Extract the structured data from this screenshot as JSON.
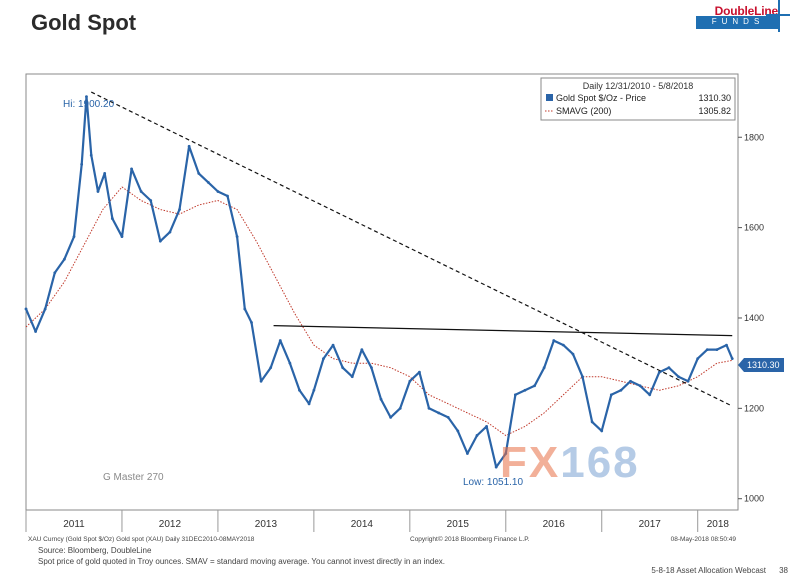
{
  "slide": {
    "title": "Gold Spot",
    "logo_brand": "DoubleLine",
    "logo_sub": "FUNDS",
    "source": "Source: Bloomberg, DoubleLine",
    "note": "Spot price of gold quoted in Troy ounces. SMAV = standard moving average. You cannot invest directly in an index.",
    "footer": "5-8-18 Asset Allocation Webcast",
    "page": "38"
  },
  "watermark": {
    "part1": "FX",
    "part2": "168"
  },
  "colors": {
    "price": "#2a64a8",
    "smavg": "#c0392b",
    "trend": "#111111",
    "frame": "#7a7a7a",
    "label_bg": "#2a64a8"
  },
  "chart_data": {
    "type": "line",
    "date_range": "Daily 12/31/2010 - 5/8/2018",
    "legend": [
      {
        "label": "Gold Spot $/Oz - Price",
        "value": "1310.30"
      },
      {
        "label": "SMAVG (200)",
        "value": "1305.82"
      }
    ],
    "legend_placement": "top-right",
    "x_ticks": [
      "2011",
      "2012",
      "2013",
      "2014",
      "2015",
      "2016",
      "2017",
      "2018"
    ],
    "y_ticks": [
      "1000",
      "1200",
      "1400",
      "1600",
      "1800"
    ],
    "ylim": [
      975,
      1940
    ],
    "last_price_label": "1310.30",
    "annotations": {
      "high": "Hi: 1900.20",
      "low": "Low: 1051.10"
    },
    "bottom_left": "XAU Curncy (Gold Spot $/Oz) Gold spot (XAU) Daily 31DEC2010-08MAY2018",
    "copyright": "Copyright© 2018 Bloomberg Finance L.P.",
    "timestamp": "08-May-2018 08:50:49",
    "watermark_label": "G Master 270",
    "series": [
      {
        "name": "Gold Spot $/Oz",
        "x": [
          2011.0,
          2011.1,
          2011.2,
          2011.3,
          2011.4,
          2011.5,
          2011.58,
          2011.63,
          2011.68,
          2011.75,
          2011.82,
          2011.9,
          2012.0,
          2012.1,
          2012.2,
          2012.3,
          2012.4,
          2012.5,
          2012.6,
          2012.7,
          2012.8,
          2012.9,
          2013.0,
          2013.1,
          2013.2,
          2013.28,
          2013.35,
          2013.45,
          2013.55,
          2013.65,
          2013.75,
          2013.85,
          2013.95,
          2014.0,
          2014.1,
          2014.2,
          2014.3,
          2014.4,
          2014.5,
          2014.6,
          2014.7,
          2014.8,
          2014.9,
          2015.0,
          2015.1,
          2015.2,
          2015.3,
          2015.4,
          2015.5,
          2015.6,
          2015.7,
          2015.8,
          2015.9,
          2016.0,
          2016.1,
          2016.2,
          2016.3,
          2016.4,
          2016.5,
          2016.6,
          2016.7,
          2016.8,
          2016.9,
          2017.0,
          2017.1,
          2017.2,
          2017.3,
          2017.4,
          2017.5,
          2017.6,
          2017.7,
          2017.8,
          2017.9,
          2018.0,
          2018.1,
          2018.2,
          2018.3,
          2018.36
        ],
        "y": [
          1420,
          1370,
          1420,
          1500,
          1530,
          1580,
          1740,
          1890,
          1760,
          1680,
          1720,
          1620,
          1580,
          1730,
          1680,
          1660,
          1570,
          1590,
          1640,
          1780,
          1720,
          1700,
          1680,
          1670,
          1580,
          1420,
          1390,
          1260,
          1290,
          1350,
          1300,
          1240,
          1210,
          1240,
          1310,
          1340,
          1290,
          1270,
          1330,
          1290,
          1220,
          1180,
          1200,
          1260,
          1280,
          1200,
          1190,
          1180,
          1150,
          1100,
          1140,
          1160,
          1070,
          1100,
          1230,
          1240,
          1250,
          1290,
          1350,
          1340,
          1320,
          1270,
          1170,
          1150,
          1230,
          1240,
          1260,
          1250,
          1230,
          1280,
          1290,
          1270,
          1260,
          1310,
          1330,
          1330,
          1340,
          1310
        ]
      },
      {
        "name": "SMAVG (200)",
        "x": [
          2011.0,
          2011.2,
          2011.4,
          2011.6,
          2011.8,
          2012.0,
          2012.2,
          2012.4,
          2012.6,
          2012.8,
          2013.0,
          2013.2,
          2013.4,
          2013.6,
          2013.8,
          2014.0,
          2014.2,
          2014.4,
          2014.6,
          2014.8,
          2015.0,
          2015.2,
          2015.4,
          2015.6,
          2015.8,
          2016.0,
          2016.2,
          2016.4,
          2016.6,
          2016.8,
          2017.0,
          2017.2,
          2017.4,
          2017.6,
          2017.8,
          2018.0,
          2018.2,
          2018.36
        ],
        "y": [
          1380,
          1420,
          1480,
          1560,
          1640,
          1690,
          1660,
          1640,
          1630,
          1650,
          1660,
          1640,
          1570,
          1490,
          1410,
          1340,
          1310,
          1300,
          1300,
          1290,
          1270,
          1230,
          1210,
          1190,
          1170,
          1140,
          1160,
          1190,
          1230,
          1270,
          1270,
          1260,
          1250,
          1240,
          1250,
          1270,
          1300,
          1306
        ]
      }
    ],
    "trendlines": [
      {
        "name": "downtrend",
        "style": "dashed",
        "x": [
          2011.68,
          2018.36
        ],
        "y": [
          1900,
          1205
        ]
      },
      {
        "name": "resistance",
        "style": "solid",
        "x": [
          2013.58,
          2018.36
        ],
        "y": [
          1383,
          1361
        ]
      }
    ]
  }
}
